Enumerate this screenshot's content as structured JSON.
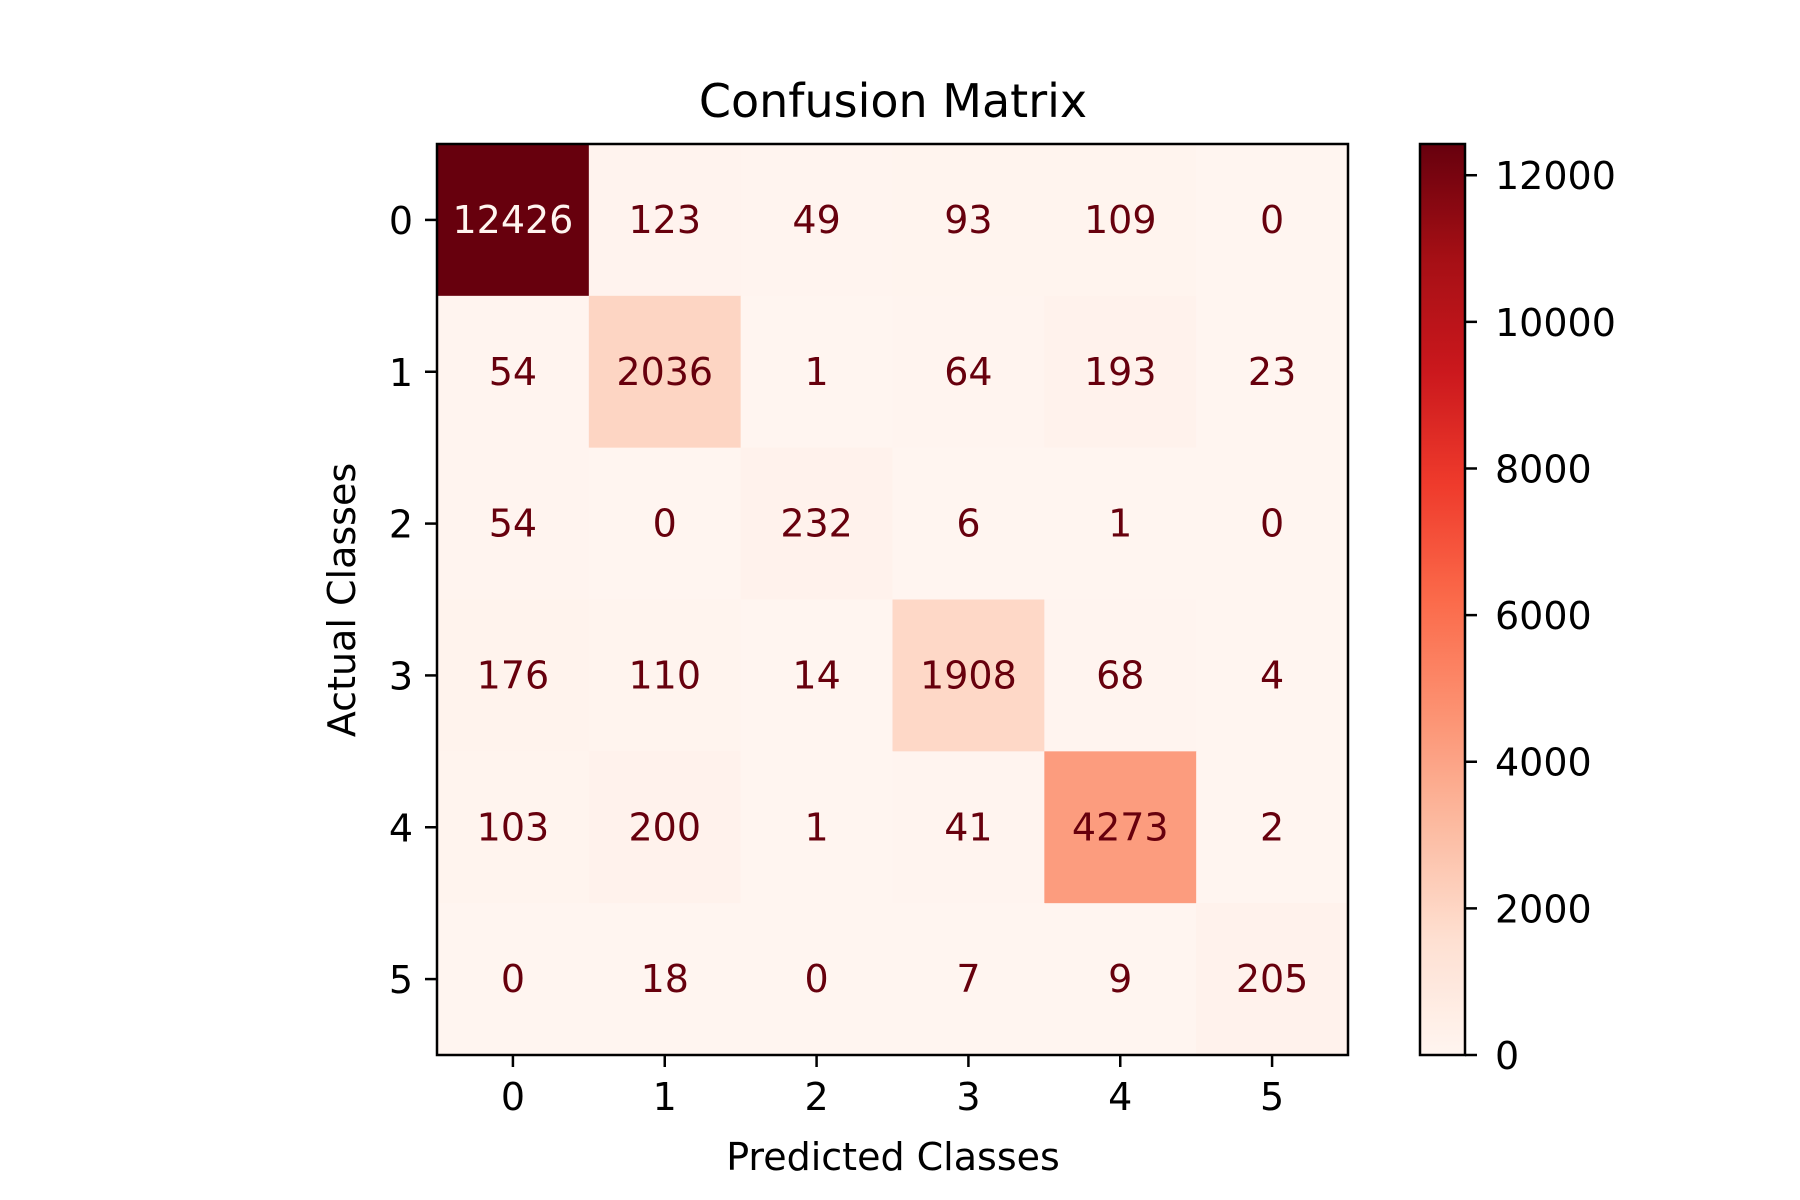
{
  "chart_data": {
    "type": "heatmap",
    "title": "Confusion Matrix",
    "xlabel": "Predicted Classes",
    "ylabel": "Actual Classes",
    "x_categories": [
      "0",
      "1",
      "2",
      "3",
      "4",
      "5"
    ],
    "y_categories": [
      "0",
      "1",
      "2",
      "3",
      "4",
      "5"
    ],
    "values": [
      [
        12426,
        123,
        49,
        93,
        109,
        0
      ],
      [
        54,
        2036,
        1,
        64,
        193,
        23
      ],
      [
        54,
        0,
        232,
        6,
        1,
        0
      ],
      [
        176,
        110,
        14,
        1908,
        68,
        4
      ],
      [
        103,
        200,
        1,
        41,
        4273,
        2
      ],
      [
        0,
        18,
        0,
        7,
        9,
        205
      ]
    ],
    "colormap": "Reds",
    "colorbar": {
      "range": [
        0,
        12426
      ],
      "ticks": [
        0,
        2000,
        4000,
        6000,
        8000,
        10000,
        12000
      ],
      "tick_labels": [
        "0",
        "2000",
        "4000",
        "6000",
        "8000",
        "10000",
        "12000"
      ]
    },
    "colors": {
      "low": "#fff5f0",
      "high": "#67000d",
      "text_dark": "#67000d",
      "text_light": "#fff5f0"
    }
  }
}
